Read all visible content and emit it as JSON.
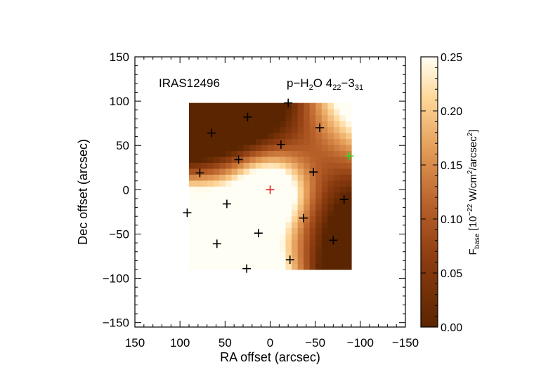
{
  "chart_data": {
    "type": "heatmap",
    "source_name": "IRAS12496",
    "line_label": {
      "prefix": "p−H",
      "sub1": "2",
      "mid": "O 4",
      "sub2": "22",
      "dash": "−3",
      "sub3": "31"
    },
    "xlabel": "RA offset (arcsec)",
    "ylabel": "Dec offset (arcsec)",
    "xlim": [
      150,
      -150
    ],
    "ylim": [
      -155,
      150
    ],
    "xticks": [
      150,
      100,
      50,
      0,
      -50,
      -100,
      -150
    ],
    "yticks": [
      150,
      100,
      50,
      0,
      -50,
      -100,
      -150
    ],
    "xtick_labels": [
      "150",
      "100",
      "50",
      "0",
      "−50",
      "−100",
      "−150"
    ],
    "ytick_labels": [
      "150",
      "100",
      "50",
      "0",
      "−50",
      "−100",
      "−150"
    ],
    "map_extent": {
      "x": [
        90,
        -90
      ],
      "y": [
        -90,
        98
      ]
    },
    "map_peak": {
      "x": 0,
      "y": 0,
      "value": 0.24
    },
    "colorbar": {
      "range": [
        0,
        0.25
      ],
      "ticks": [
        0.0,
        0.05,
        0.1,
        0.15,
        0.2,
        0.25
      ],
      "tick_labels": [
        "0.00",
        "0.05",
        "0.10",
        "0.15",
        "0.20",
        "0.25"
      ],
      "label": {
        "f": "F",
        "f_sub": "base",
        "open": " [10",
        "exp": "−22",
        "unit1": " W/cm",
        "exp2": "2",
        "unit2": "/arcsec",
        "exp3": "2",
        "close": "]"
      }
    },
    "markers": {
      "black": [
        [
          -20,
          98
        ],
        [
          25,
          82
        ],
        [
          -55,
          70
        ],
        [
          65,
          64
        ],
        [
          -12,
          51
        ],
        [
          35,
          34
        ],
        [
          78,
          19
        ],
        [
          -48,
          20
        ],
        [
          -82,
          -11
        ],
        [
          48,
          -16
        ],
        [
          92,
          -26
        ],
        [
          -37,
          -32
        ],
        [
          13,
          -49
        ],
        [
          -70,
          -57
        ],
        [
          59,
          -61
        ],
        [
          -22,
          -79
        ],
        [
          26,
          -89
        ]
      ],
      "red": [
        [
          0,
          0
        ]
      ],
      "green": [
        [
          -88,
          38
        ]
      ]
    },
    "colors": {
      "marker_black": "#000000",
      "marker_red": "#e02020",
      "marker_green": "#22dd22"
    }
  }
}
